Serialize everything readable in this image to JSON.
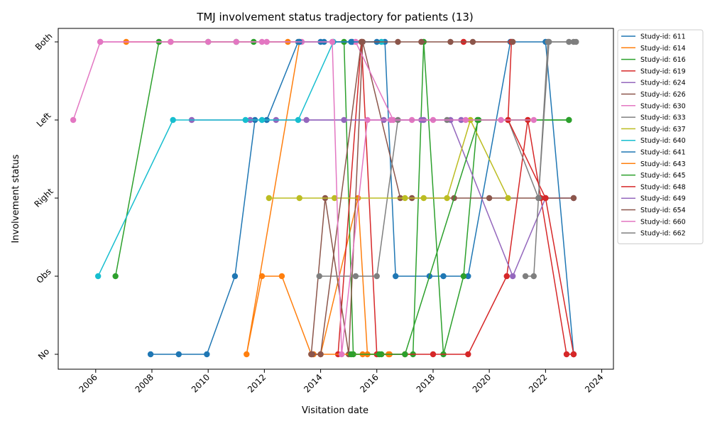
{
  "chart_data": {
    "type": "line",
    "title": "TMJ involvement status tradjectory for patients (13)",
    "xlabel": "Visitation date",
    "ylabel": "Involvement status",
    "categories": [
      "No",
      "Obs",
      "Right",
      "Left",
      "Both"
    ],
    "x_ticks": [
      "2006",
      "2008",
      "2010",
      "2012",
      "2014",
      "2016",
      "2018",
      "2020",
      "2022",
      "2024"
    ],
    "xlim": [
      "2004-09-01",
      "2024-06-01"
    ],
    "grid": false,
    "legend_position": "outside-right",
    "series": [
      {
        "name": "Study-id: 611",
        "color": "#1f77b4",
        "points": [
          [
            "2007-12-15",
            "No"
          ],
          [
            "2008-12-15",
            "No"
          ],
          [
            "2009-12-15",
            "No"
          ],
          [
            "2010-12-15",
            "Obs"
          ],
          [
            "2011-09-01",
            "Left"
          ],
          [
            "2012-02-01",
            "Left"
          ],
          [
            "2013-03-15",
            "Both"
          ],
          [
            "2014-02-15",
            "Both"
          ],
          [
            "2015-02-15",
            "Both"
          ],
          [
            "2016-04-15",
            "Both"
          ],
          [
            "2016-09-01",
            "Obs"
          ],
          [
            "2017-11-15",
            "Obs"
          ],
          [
            "2018-05-15",
            "Obs"
          ],
          [
            "2019-04-01",
            "Obs"
          ],
          [
            "2020-10-01",
            "Both"
          ],
          [
            "2022-01-01",
            "Both"
          ],
          [
            "2023-01-01",
            "No"
          ]
        ]
      },
      {
        "name": "Study-id: 614",
        "color": "#ff7f0e",
        "points": [
          [
            "2007-02-01",
            "Both"
          ],
          [
            "2008-09-01",
            "Both"
          ],
          [
            "2012-11-01",
            "Both"
          ],
          [
            "2013-04-01",
            "Both"
          ],
          [
            "2011-05-15",
            "No"
          ],
          [
            "2011-12-01",
            "Obs"
          ],
          [
            "2012-08-15",
            "Obs"
          ],
          [
            "2013-09-01",
            "No"
          ],
          [
            "2014-01-01",
            "No"
          ],
          [
            "2015-05-01",
            "Right"
          ],
          [
            "2015-09-01",
            "No"
          ],
          [
            "2016-06-15",
            "No"
          ]
        ]
      },
      {
        "name": "Study-id: 616",
        "color": "#2ca02c",
        "points": [
          [
            "2006-09-15",
            "Obs"
          ],
          [
            "2008-04-01",
            "Both"
          ],
          [
            "2010-01-01",
            "Both"
          ],
          [
            "2011-01-01",
            "Both"
          ],
          [
            "2011-08-15",
            "Both"
          ],
          [
            "2014-11-01",
            "Both"
          ],
          [
            "2015-03-01",
            "No"
          ],
          [
            "2016-03-01",
            "No"
          ],
          [
            "2017-04-15",
            "No"
          ],
          [
            "2017-09-01",
            "Both"
          ],
          [
            "2018-05-15",
            "No"
          ],
          [
            "2019-02-01",
            "Obs"
          ],
          [
            "2019-08-01",
            "Left"
          ],
          [
            "2022-11-01",
            "Left"
          ]
        ]
      },
      {
        "name": "Study-id: 619",
        "color": "#d62728",
        "points": [
          [
            "2014-08-15",
            "No"
          ],
          [
            "2015-06-15",
            "Both"
          ],
          [
            "2016-01-01",
            "No"
          ],
          [
            "2017-01-01",
            "No"
          ],
          [
            "2018-01-01",
            "No"
          ],
          [
            "2019-04-01",
            "No"
          ],
          [
            "2020-08-15",
            "Obs"
          ],
          [
            "2021-05-15",
            "Left"
          ],
          [
            "2021-11-01",
            "Right"
          ],
          [
            "2022-10-01",
            "No"
          ],
          [
            "2023-01-01",
            "No"
          ]
        ]
      },
      {
        "name": "Study-id: 624",
        "color": "#9467bd",
        "points": [
          [
            "2009-06-01",
            "Left"
          ],
          [
            "2011-07-01",
            "Left"
          ],
          [
            "2012-06-01",
            "Left"
          ],
          [
            "2014-11-01",
            "Left"
          ],
          [
            "2017-09-01",
            "Left"
          ],
          [
            "2018-08-15",
            "Left"
          ],
          [
            "2020-11-01",
            "Obs"
          ],
          [
            "2022-01-01",
            "Right"
          ],
          [
            "2023-01-01",
            "Right"
          ]
        ]
      },
      {
        "name": "Study-id: 626",
        "color": "#8c564b",
        "points": [
          [
            "2013-09-01",
            "No"
          ],
          [
            "2014-03-01",
            "Right"
          ],
          [
            "2015-01-01",
            "No"
          ],
          [
            "2015-07-01",
            "Both"
          ],
          [
            "2016-11-01",
            "Right"
          ],
          [
            "2017-04-01",
            "Right"
          ],
          [
            "2018-10-01",
            "Right"
          ],
          [
            "2020-01-01",
            "Right"
          ],
          [
            "2022-01-01",
            "Right"
          ],
          [
            "2023-01-01",
            "Right"
          ]
        ]
      },
      {
        "name": "Study-id: 630",
        "color": "#e377c2",
        "points": [
          [
            "2006-03-01",
            "Both"
          ],
          [
            "2008-09-01",
            "Both"
          ],
          [
            "2010-01-01",
            "Both"
          ],
          [
            "2011-01-01",
            "Both"
          ],
          [
            "2011-12-01",
            "Both"
          ],
          [
            "2013-05-01",
            "Both"
          ],
          [
            "2014-06-15",
            "Both"
          ],
          [
            "2015-04-01",
            "Both"
          ],
          [
            "2016-08-01",
            "Left"
          ],
          [
            "2017-04-01",
            "Left"
          ],
          [
            "2018-01-01",
            "Left"
          ]
        ]
      },
      {
        "name": "Study-id: 633",
        "color": "#7f7f7f",
        "points": [
          [
            "2013-12-15",
            "Obs"
          ],
          [
            "2015-04-01",
            "Obs"
          ],
          [
            "2016-01-01",
            "Obs"
          ],
          [
            "2016-10-01",
            "Left"
          ],
          [
            "2018-07-01",
            "Left"
          ],
          [
            "2020-09-01",
            "Left"
          ],
          [
            "2021-10-01",
            "Right"
          ],
          [
            "2022-02-01",
            "Both"
          ],
          [
            "2023-01-01",
            "Both"
          ]
        ]
      },
      {
        "name": "Study-id: 637",
        "color": "#bcbd22",
        "points": [
          [
            "2012-03-01",
            "Right"
          ],
          [
            "2013-04-01",
            "Right"
          ],
          [
            "2014-07-01",
            "Right"
          ],
          [
            "2017-01-01",
            "Right"
          ],
          [
            "2017-09-01",
            "Right"
          ],
          [
            "2018-07-01",
            "Right"
          ],
          [
            "2019-05-01",
            "Left"
          ],
          [
            "2020-09-01",
            "Right"
          ]
        ]
      },
      {
        "name": "Study-id: 640",
        "color": "#17becf",
        "points": [
          [
            "2006-02-01",
            "Obs"
          ],
          [
            "2008-10-01",
            "Left"
          ],
          [
            "2011-05-01",
            "Left"
          ],
          [
            "2011-12-01",
            "Left"
          ],
          [
            "2013-03-15",
            "Left"
          ],
          [
            "2014-06-15",
            "Both"
          ],
          [
            "2016-03-01",
            "Both"
          ]
        ]
      },
      {
        "name": "Study-id: 641",
        "color": "#1f77b4",
        "points": [
          [
            "2013-04-01",
            "Both"
          ],
          [
            "2014-01-01",
            "Both"
          ],
          [
            "2015-02-01",
            "Both"
          ],
          [
            "2016-01-01",
            "Both"
          ]
        ]
      },
      {
        "name": "Study-id: 643",
        "color": "#ff7f0e",
        "points": [
          [
            "2013-10-01",
            "No"
          ],
          [
            "2015-07-01",
            "No"
          ],
          [
            "2016-06-01",
            "No"
          ]
        ]
      },
      {
        "name": "Study-id: 645",
        "color": "#2ca02c",
        "points": [
          [
            "2015-02-01",
            "No"
          ],
          [
            "2016-02-01",
            "No"
          ],
          [
            "2017-01-01",
            "No"
          ],
          [
            "2019-08-15",
            "Left"
          ],
          [
            "2022-11-01",
            "Left"
          ]
        ]
      },
      {
        "name": "Study-id: 648",
        "color": "#d62728",
        "points": [
          [
            "2019-02-01",
            "Both"
          ],
          [
            "2020-10-15",
            "Both"
          ],
          [
            "2020-09-01",
            "Left"
          ],
          [
            "2022-01-01",
            "Right"
          ],
          [
            "2023-01-01",
            "No"
          ]
        ]
      },
      {
        "name": "Study-id: 649",
        "color": "#9467bd",
        "points": [
          [
            "2013-07-01",
            "Left"
          ],
          [
            "2016-04-01",
            "Left"
          ],
          [
            "2017-08-01",
            "Left"
          ],
          [
            "2019-01-01",
            "Left"
          ]
        ]
      },
      {
        "name": "Study-id: 654",
        "color": "#8c564b",
        "points": [
          [
            "2013-09-15",
            "No"
          ],
          [
            "2014-01-01",
            "No"
          ],
          [
            "2015-06-15",
            "Both"
          ],
          [
            "2016-10-01",
            "Both"
          ],
          [
            "2017-08-01",
            "Both"
          ],
          [
            "2018-08-15",
            "Both"
          ],
          [
            "2019-06-01",
            "Both"
          ],
          [
            "2020-11-01",
            "Both"
          ]
        ]
      },
      {
        "name": "Study-id: 660",
        "color": "#e377c2",
        "points": [
          [
            "2005-03-15",
            "Left"
          ],
          [
            "2006-03-01",
            "Both"
          ],
          [
            "2012-02-01",
            "Both"
          ],
          [
            "2014-06-01",
            "Both"
          ],
          [
            "2014-10-01",
            "No"
          ],
          [
            "2015-09-01",
            "Left"
          ],
          [
            "2016-07-01",
            "Left"
          ],
          [
            "2019-03-01",
            "Left"
          ],
          [
            "2020-06-01",
            "Left"
          ],
          [
            "2021-08-01",
            "Left"
          ]
        ]
      },
      {
        "name": "Study-id: 662",
        "color": "#7f7f7f",
        "points": [
          [
            "2021-04-15",
            "Obs"
          ],
          [
            "2021-08-01",
            "Obs"
          ],
          [
            "2021-10-01",
            "Right"
          ],
          [
            "2022-02-15",
            "Both"
          ],
          [
            "2022-11-01",
            "Both"
          ],
          [
            "2023-02-01",
            "Both"
          ]
        ]
      }
    ]
  }
}
